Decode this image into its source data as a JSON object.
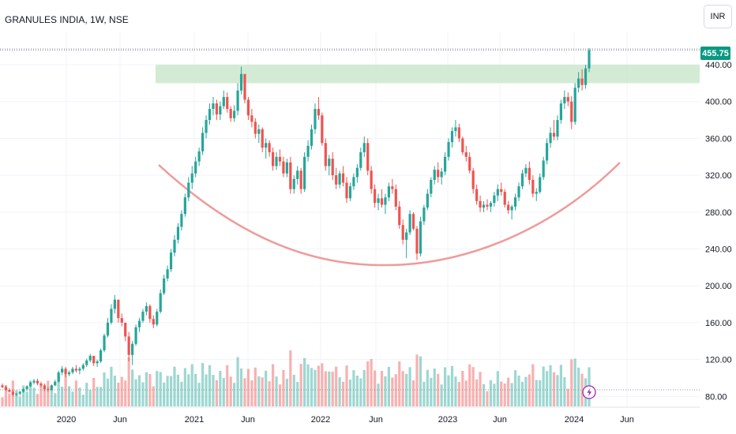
{
  "header": {
    "title": "GRANULES INDIA, 1W, NSE",
    "currency_label": "INR"
  },
  "last_price": "455.75",
  "colors": {
    "up": "#26a69a",
    "down": "#ef5350",
    "zone": "#c8e6c9",
    "curve": "#ef9a9a",
    "tag": "#089981",
    "grid": "#f0f3fa",
    "line": "#8a8f9c"
  },
  "chart_data": {
    "type": "candlestick",
    "y_range": [
      70,
      476
    ],
    "y_ticks": [
      "440.00",
      "400.00",
      "360.00",
      "320.00",
      "280.00",
      "240.00",
      "200.00",
      "160.00",
      "120.00",
      "80.00"
    ],
    "x_labels": [
      "2020",
      "Jun",
      "2021",
      "Jun",
      "2022",
      "Jun",
      "2023",
      "Jun",
      "2024",
      "Jun"
    ],
    "resistance_zone": [
      420,
      440
    ],
    "series": [
      {
        "values": [
          [
            92,
            94,
            89,
            90
          ],
          [
            90,
            92,
            86,
            87
          ],
          [
            87,
            89,
            84,
            85
          ],
          [
            85,
            87,
            80,
            82
          ],
          [
            82,
            84,
            80,
            83
          ],
          [
            83,
            86,
            81,
            85
          ],
          [
            85,
            89,
            84,
            88
          ],
          [
            88,
            92,
            86,
            91
          ],
          [
            91,
            96,
            90,
            95
          ],
          [
            95,
            99,
            93,
            97
          ],
          [
            97,
            99,
            92,
            94
          ],
          [
            94,
            96,
            90,
            92
          ],
          [
            92,
            94,
            86,
            88
          ],
          [
            88,
            90,
            85,
            87
          ],
          [
            87,
            93,
            86,
            92
          ],
          [
            92,
            98,
            91,
            96
          ],
          [
            96,
            108,
            95,
            106
          ],
          [
            106,
            113,
            103,
            110
          ],
          [
            110,
            112,
            101,
            104
          ],
          [
            104,
            108,
            102,
            106
          ],
          [
            106,
            112,
            104,
            110
          ],
          [
            110,
            114,
            106,
            108
          ],
          [
            108,
            112,
            104,
            110
          ],
          [
            110,
            116,
            108,
            114
          ],
          [
            114,
            121,
            112,
            119
          ],
          [
            119,
            126,
            117,
            124
          ],
          [
            124,
            123,
            113,
            116
          ],
          [
            116,
            120,
            112,
            118
          ],
          [
            118,
            132,
            116,
            130
          ],
          [
            130,
            148,
            128,
            146
          ],
          [
            146,
            165,
            144,
            160
          ],
          [
            160,
            180,
            158,
            175
          ],
          [
            175,
            190,
            170,
            185
          ],
          [
            185,
            180,
            160,
            165
          ],
          [
            165,
            170,
            156,
            160
          ],
          [
            160,
            158,
            140,
            145
          ],
          [
            145,
            150,
            118,
            125
          ],
          [
            125,
            140,
            114,
            137
          ],
          [
            137,
            158,
            135,
            155
          ],
          [
            155,
            165,
            150,
            162
          ],
          [
            162,
            175,
            160,
            172
          ],
          [
            172,
            182,
            168,
            178
          ],
          [
            178,
            180,
            160,
            164
          ],
          [
            164,
            168,
            154,
            158
          ],
          [
            158,
            175,
            156,
            172
          ],
          [
            172,
            196,
            170,
            192
          ],
          [
            192,
            212,
            190,
            208
          ],
          [
            208,
            222,
            205,
            218
          ],
          [
            218,
            240,
            215,
            236
          ],
          [
            236,
            255,
            232,
            250
          ],
          [
            250,
            268,
            246,
            264
          ],
          [
            264,
            282,
            260,
            278
          ],
          [
            278,
            300,
            275,
            296
          ],
          [
            296,
            318,
            292,
            312
          ],
          [
            312,
            330,
            305,
            322
          ],
          [
            322,
            340,
            318,
            335
          ],
          [
            335,
            350,
            330,
            346
          ],
          [
            346,
            372,
            342,
            366
          ],
          [
            366,
            385,
            360,
            380
          ],
          [
            380,
            398,
            375,
            392
          ],
          [
            392,
            405,
            385,
            398
          ],
          [
            398,
            402,
            380,
            386
          ],
          [
            386,
            400,
            380,
            395
          ],
          [
            395,
            412,
            392,
            405
          ],
          [
            405,
            410,
            388,
            392
          ],
          [
            392,
            395,
            378,
            382
          ],
          [
            382,
            396,
            378,
            390
          ],
          [
            390,
            420,
            385,
            412
          ],
          [
            412,
            438,
            408,
            430
          ],
          [
            430,
            425,
            398,
            402
          ],
          [
            402,
            405,
            380,
            385
          ],
          [
            385,
            392,
            372,
            378
          ],
          [
            378,
            382,
            360,
            365
          ],
          [
            365,
            375,
            355,
            370
          ],
          [
            370,
            372,
            345,
            350
          ],
          [
            350,
            360,
            338,
            355
          ],
          [
            355,
            358,
            340,
            345
          ],
          [
            345,
            350,
            325,
            330
          ],
          [
            330,
            345,
            326,
            340
          ],
          [
            340,
            348,
            330,
            335
          ],
          [
            335,
            340,
            318,
            322
          ],
          [
            322,
            338,
            318,
            334
          ],
          [
            334,
            340,
            300,
            305
          ],
          [
            305,
            320,
            300,
            316
          ],
          [
            316,
            330,
            310,
            325
          ],
          [
            325,
            328,
            300,
            305
          ],
          [
            305,
            345,
            302,
            340
          ],
          [
            340,
            358,
            335,
            352
          ],
          [
            352,
            375,
            348,
            370
          ],
          [
            370,
            398,
            365,
            392
          ],
          [
            392,
            405,
            380,
            385
          ],
          [
            385,
            388,
            352,
            355
          ],
          [
            355,
            360,
            325,
            330
          ],
          [
            330,
            342,
            320,
            338
          ],
          [
            338,
            345,
            315,
            320
          ],
          [
            320,
            328,
            305,
            310
          ],
          [
            310,
            325,
            306,
            322
          ],
          [
            322,
            330,
            308,
            312
          ],
          [
            312,
            318,
            290,
            295
          ],
          [
            295,
            312,
            292,
            308
          ],
          [
            308,
            322,
            304,
            318
          ],
          [
            318,
            332,
            312,
            328
          ],
          [
            328,
            350,
            325,
            345
          ],
          [
            345,
            362,
            340,
            355
          ],
          [
            355,
            360,
            320,
            325
          ],
          [
            325,
            330,
            300,
            305
          ],
          [
            305,
            310,
            285,
            290
          ],
          [
            290,
            300,
            282,
            295
          ],
          [
            295,
            305,
            285,
            288
          ],
          [
            288,
            300,
            278,
            296
          ],
          [
            296,
            312,
            292,
            308
          ],
          [
            308,
            316,
            300,
            305
          ],
          [
            305,
            310,
            282,
            286
          ],
          [
            286,
            292,
            262,
            266
          ],
          [
            266,
            272,
            245,
            250
          ],
          [
            250,
            262,
            230,
            258
          ],
          [
            258,
            282,
            255,
            278
          ],
          [
            278,
            280,
            260,
            262
          ],
          [
            262,
            265,
            228,
            235
          ],
          [
            235,
            275,
            232,
            270
          ],
          [
            270,
            288,
            266,
            285
          ],
          [
            285,
            305,
            282,
            300
          ],
          [
            300,
            318,
            296,
            315
          ],
          [
            315,
            330,
            310,
            326
          ],
          [
            326,
            334,
            312,
            318
          ],
          [
            318,
            328,
            310,
            324
          ],
          [
            324,
            345,
            320,
            340
          ],
          [
            340,
            360,
            336,
            356
          ],
          [
            356,
            372,
            350,
            368
          ],
          [
            368,
            380,
            362,
            372
          ],
          [
            372,
            376,
            356,
            360
          ],
          [
            360,
            362,
            342,
            345
          ],
          [
            345,
            352,
            335,
            340
          ],
          [
            340,
            345,
            322,
            325
          ],
          [
            325,
            328,
            300,
            305
          ],
          [
            305,
            310,
            288,
            292
          ],
          [
            292,
            298,
            280,
            285
          ],
          [
            285,
            292,
            280,
            288
          ],
          [
            288,
            294,
            282,
            286
          ],
          [
            286,
            292,
            280,
            290
          ],
          [
            290,
            302,
            286,
            298
          ],
          [
            298,
            310,
            292,
            305
          ],
          [
            305,
            312,
            298,
            302
          ],
          [
            302,
            305,
            285,
            288
          ],
          [
            288,
            292,
            278,
            282
          ],
          [
            282,
            288,
            272,
            286
          ],
          [
            286,
            300,
            282,
            296
          ],
          [
            296,
            312,
            292,
            308
          ],
          [
            308,
            326,
            305,
            322
          ],
          [
            322,
            332,
            318,
            328
          ],
          [
            328,
            335,
            310,
            315
          ],
          [
            315,
            320,
            296,
            300
          ],
          [
            300,
            306,
            292,
            302
          ],
          [
            302,
            322,
            300,
            318
          ],
          [
            318,
            340,
            315,
            336
          ],
          [
            336,
            360,
            332,
            355
          ],
          [
            355,
            372,
            350,
            366
          ],
          [
            366,
            380,
            358,
            362
          ],
          [
            362,
            385,
            358,
            380
          ],
          [
            380,
            402,
            376,
            398
          ],
          [
            398,
            412,
            392,
            405
          ],
          [
            405,
            410,
            395,
            400
          ],
          [
            400,
            406,
            370,
            378
          ],
          [
            378,
            420,
            375,
            415
          ],
          [
            415,
            432,
            410,
            425
          ],
          [
            425,
            435,
            412,
            418
          ],
          [
            418,
            440,
            414,
            436
          ],
          [
            436,
            458,
            432,
            455.75
          ]
        ]
      }
    ]
  }
}
